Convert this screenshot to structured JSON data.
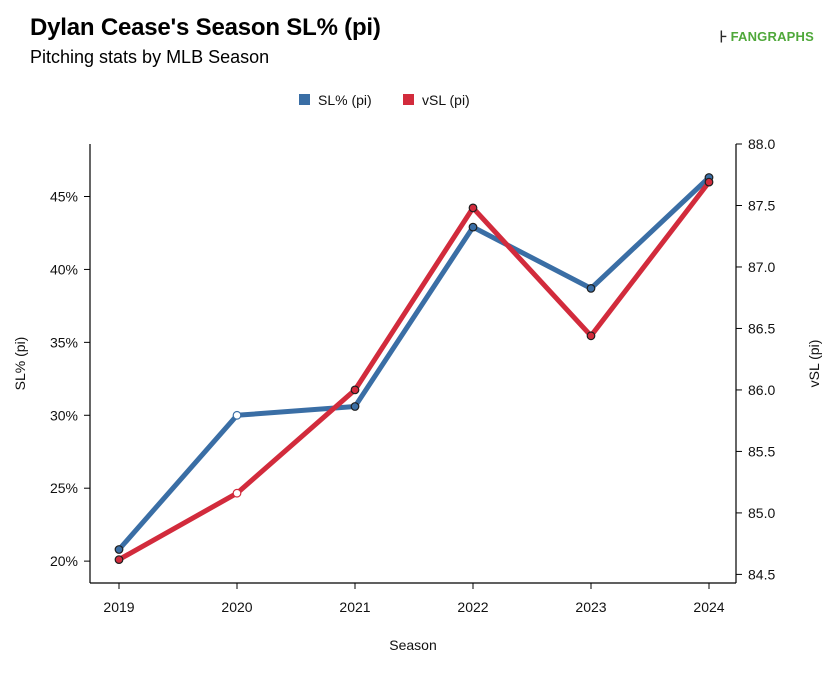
{
  "header": {
    "title": "Dylan Cease's Season SL% (pi)",
    "subtitle": "Pitching stats by MLB Season",
    "brand": "FANGRAPHS",
    "brand_icon": "fangraphs-logo-icon"
  },
  "colors": {
    "sl_pct": "#3a6ea5",
    "vsl": "#d22b3c",
    "axis": "#000000"
  },
  "chart_data": {
    "type": "line",
    "title": "Dylan Cease's Season SL% (pi)",
    "subtitle": "Pitching stats by MLB Season",
    "xlabel": "Season",
    "ylabel": "SL% (pi)",
    "y2label": "vSL (pi)",
    "categories": [
      "2019",
      "2020",
      "2021",
      "2022",
      "2023",
      "2024"
    ],
    "ylim": [
      18.5,
      48.6
    ],
    "y2lim": [
      84.43,
      88.0
    ],
    "yticks": [
      20,
      25,
      30,
      35,
      40,
      45
    ],
    "yticklabels": [
      "20%",
      "25%",
      "30%",
      "35%",
      "40%",
      "45%"
    ],
    "y2ticks": [
      84.5,
      85.0,
      85.5,
      86.0,
      86.5,
      87.0,
      87.5,
      88.0
    ],
    "y2ticklabels": [
      "84.5",
      "85.0",
      "85.5",
      "86.0",
      "86.5",
      "87.0",
      "87.5",
      "88.0"
    ],
    "legend_position": "top-center",
    "grid": false,
    "series": [
      {
        "name": "SL% (pi)",
        "axis": "left",
        "color": "#3a6ea5",
        "values": [
          20.8,
          30.0,
          30.6,
          42.9,
          38.7,
          46.3
        ],
        "hollow": [
          false,
          true,
          false,
          false,
          false,
          false
        ]
      },
      {
        "name": "vSL (pi)",
        "axis": "right",
        "color": "#d22b3c",
        "values": [
          84.62,
          85.16,
          86.0,
          87.48,
          86.44,
          87.69
        ],
        "hollow": [
          false,
          true,
          false,
          false,
          false,
          false
        ]
      }
    ]
  }
}
